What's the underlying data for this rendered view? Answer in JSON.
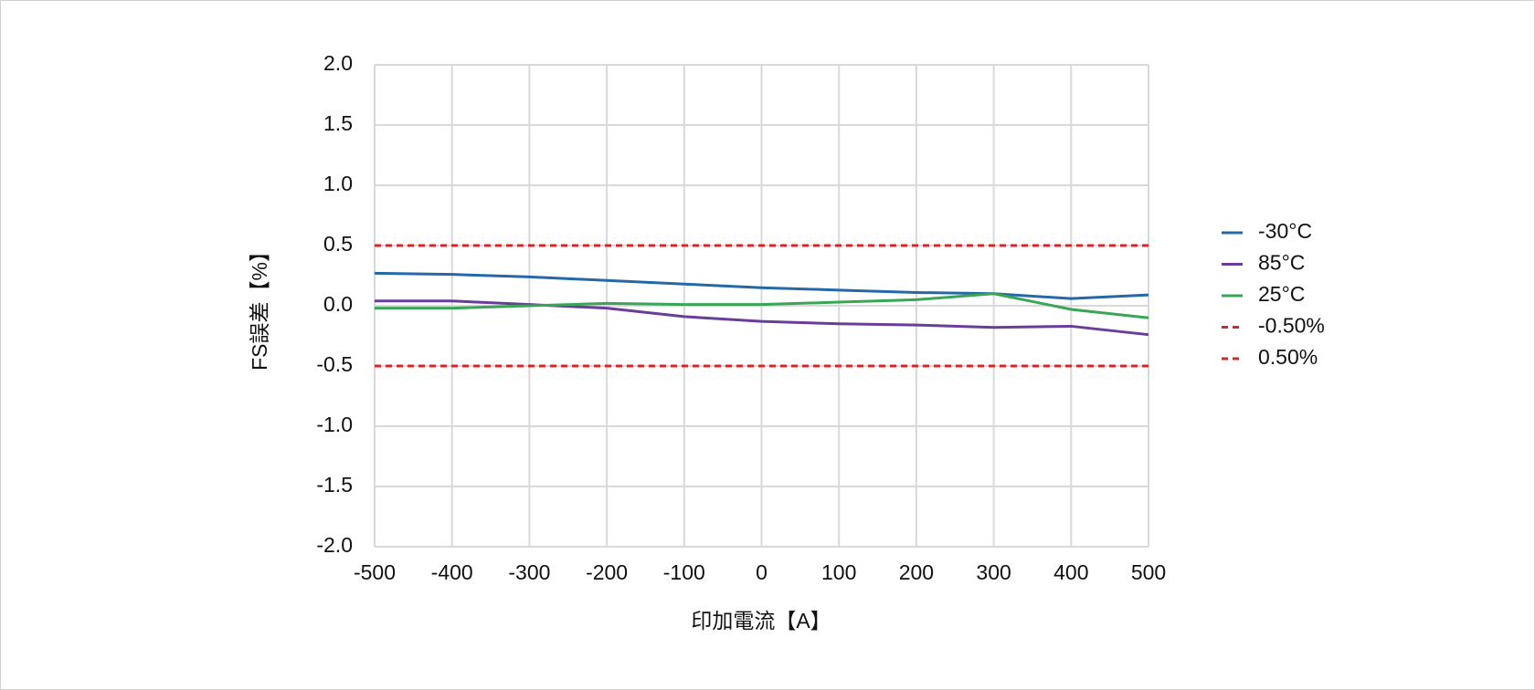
{
  "chart_data": {
    "type": "line",
    "x_label": "印加電流【A】",
    "y_label": "FS誤差【%】",
    "x": [
      -500,
      -400,
      -300,
      -200,
      -100,
      0,
      100,
      200,
      300,
      400,
      500
    ],
    "xlim": [
      -500,
      500
    ],
    "xticks": [
      -500,
      -400,
      -300,
      -200,
      -100,
      0,
      100,
      200,
      300,
      400,
      500
    ],
    "ylim": [
      -2,
      2
    ],
    "yticks": [
      {
        "value": -2,
        "label": "-2.0"
      },
      -1.5,
      {
        "value": -1,
        "label": "-1.0"
      },
      -0.5,
      {
        "value": 0,
        "label": "0.0"
      },
      0.5,
      {
        "value": 1,
        "label": "1.0"
      },
      1.5,
      {
        "value": 2,
        "label": "2.0"
      }
    ],
    "grid": true,
    "legend": "right",
    "series": [
      {
        "name": "-30°C",
        "color": "#2568a8",
        "dashed": false,
        "values": [
          0.27,
          0.26,
          0.24,
          0.21,
          0.18,
          0.15,
          0.13,
          0.11,
          0.1,
          0.06,
          0.09
        ]
      },
      {
        "name": "85°C",
        "color": "#6a3d9a",
        "dashed": false,
        "values": [
          0.04,
          0.04,
          0.01,
          -0.02,
          -0.09,
          -0.13,
          -0.15,
          -0.16,
          -0.18,
          -0.17,
          -0.24
        ]
      },
      {
        "name": "25°C",
        "color": "#3aa655",
        "dashed": false,
        "values": [
          -0.02,
          -0.02,
          0.0,
          0.02,
          0.01,
          0.01,
          0.03,
          0.05,
          0.1,
          -0.03,
          -0.1
        ]
      },
      {
        "name": "-0.50%",
        "color": "#d62728",
        "dashed": true,
        "values": [
          -0.5,
          -0.5,
          -0.5,
          -0.5,
          -0.5,
          -0.5,
          -0.5,
          -0.5,
          -0.5,
          -0.5,
          -0.5
        ]
      },
      {
        "name": "0.50%",
        "color": "#d62728",
        "dashed": true,
        "values": [
          0.5,
          0.5,
          0.5,
          0.5,
          0.5,
          0.5,
          0.5,
          0.5,
          0.5,
          0.5,
          0.5
        ]
      }
    ]
  }
}
